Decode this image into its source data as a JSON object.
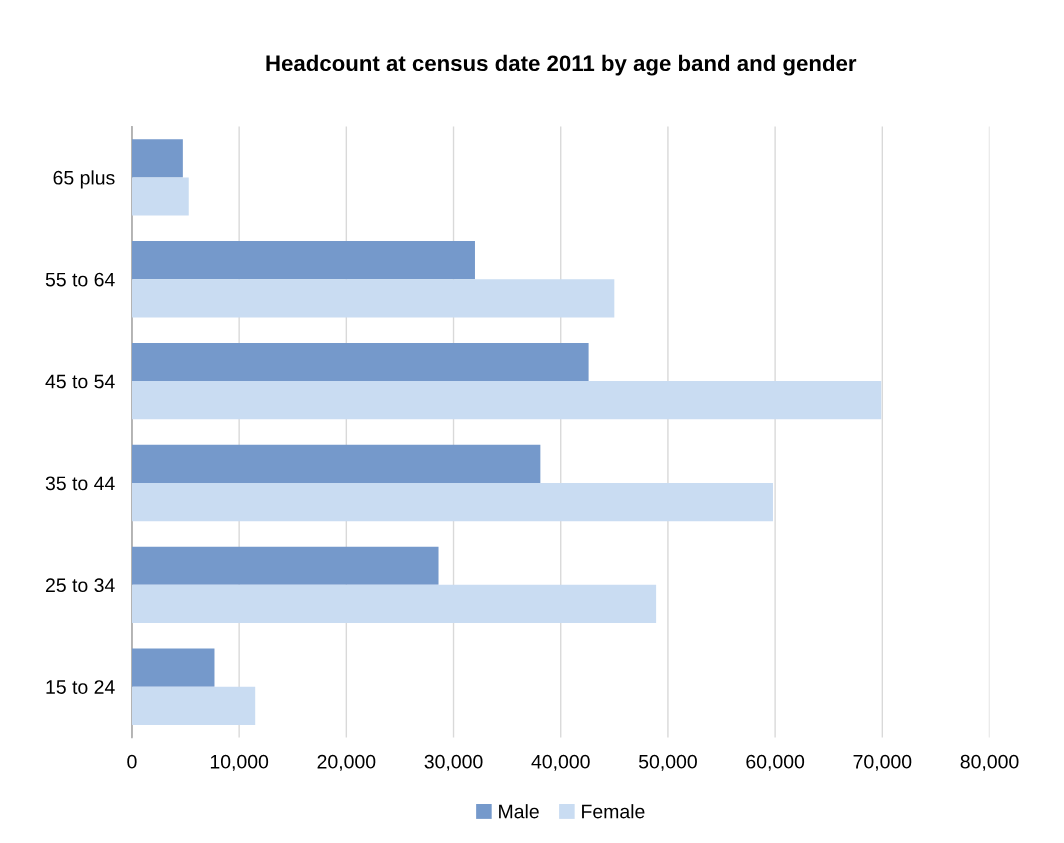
{
  "chart_data": {
    "type": "bar",
    "orientation": "horizontal",
    "title": "Headcount at census date 2011 by age band and gender",
    "categories": [
      "65 plus",
      "55 to 64",
      "45 to 54",
      "35 to 44",
      "25 to 34",
      "15 to 24"
    ],
    "series": [
      {
        "name": "Male",
        "color": "#7599cb",
        "values": [
          4750,
          32000,
          42600,
          38100,
          28600,
          7700
        ]
      },
      {
        "name": "Female",
        "color": "#c9dcf2",
        "values": [
          5300,
          45000,
          69900,
          59800,
          48900,
          11500
        ]
      }
    ],
    "xlim": [
      0,
      80000
    ],
    "xticks": [
      {
        "value": 0,
        "label": "0"
      },
      {
        "value": 10000,
        "label": "10,000"
      },
      {
        "value": 20000,
        "label": "20,000"
      },
      {
        "value": 30000,
        "label": "30,000"
      },
      {
        "value": 40000,
        "label": "40,000"
      },
      {
        "value": 50000,
        "label": "50,000"
      },
      {
        "value": 60000,
        "label": "60,000"
      },
      {
        "value": 70000,
        "label": "70,000"
      },
      {
        "value": 80000,
        "label": "80,000"
      }
    ],
    "grid": "x",
    "legend": "bottom"
  }
}
